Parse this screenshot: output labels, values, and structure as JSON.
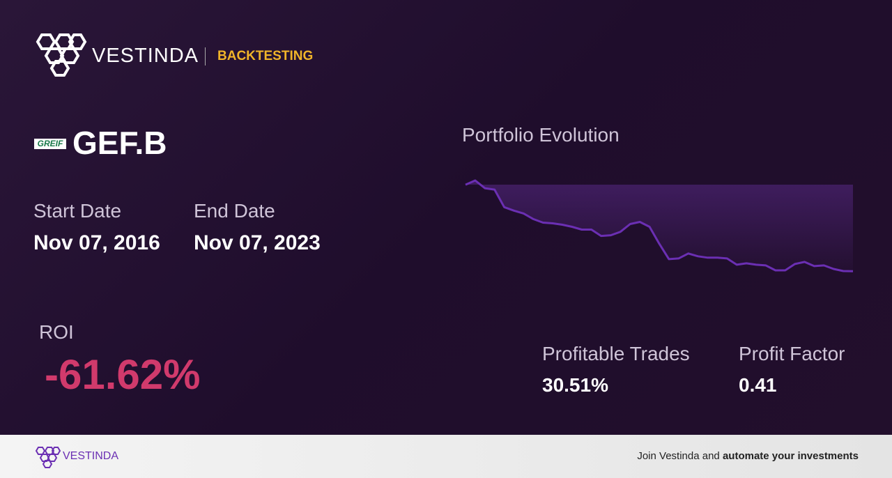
{
  "header": {
    "brand": "VESTINDA",
    "section": "BACKTESTING"
  },
  "ticker": {
    "logo": "GREIF",
    "symbol": "GEF.B"
  },
  "dates": {
    "start_label": "Start Date",
    "start": "Nov 07, 2016",
    "end_label": "End Date",
    "end": "Nov 07, 2023"
  },
  "roi": {
    "label": "ROI",
    "value": "-61.62%"
  },
  "stats": [
    {
      "label": "Profitable Trades",
      "value": "30.51%"
    },
    {
      "label": "Profit Factor",
      "value": "0.41"
    }
  ],
  "chart_data": {
    "type": "line",
    "title": "Portfolio Evolution",
    "color": "#6b2fb3",
    "values": [
      100,
      103,
      97.5,
      96.5,
      84,
      81.5,
      79.5,
      75.5,
      73,
      72.5,
      71.5,
      70,
      68,
      68,
      63.5,
      64,
      66.5,
      72,
      73.5,
      70,
      58,
      47,
      47.5,
      51,
      49,
      48,
      48,
      47.5,
      43,
      44,
      43,
      42.5,
      39,
      39,
      43.5,
      45,
      42,
      42.5,
      40,
      38.5,
      38.38
    ],
    "ylim": [
      38,
      104
    ]
  },
  "footer": {
    "brand": "VESTINDA",
    "text": "Join Vestinda and",
    "bold": "automate your investments"
  }
}
